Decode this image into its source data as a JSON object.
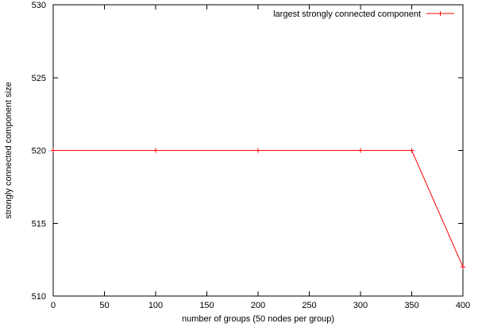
{
  "chart_data": {
    "type": "line",
    "title": "",
    "xlabel": "number of groups (50 nodes per group)",
    "ylabel": "strongly connected component size",
    "xlim": [
      0,
      400
    ],
    "ylim": [
      510,
      530
    ],
    "xticks": [
      0,
      50,
      100,
      150,
      200,
      250,
      300,
      350,
      400
    ],
    "yticks": [
      510,
      515,
      520,
      525,
      530
    ],
    "xtick_labels": [
      "0",
      "50",
      "100",
      "150",
      "200",
      "250",
      "300",
      "350",
      "400"
    ],
    "ytick_labels": [
      "510",
      "515",
      "520",
      "525",
      "530"
    ],
    "grid": false,
    "legend": "top-right",
    "series": [
      {
        "name": "largest strongly connected component",
        "color": "#ff0000",
        "marker": "plus",
        "x": [
          0,
          100,
          200,
          300,
          350,
          400
        ],
        "y": [
          520,
          520,
          520,
          520,
          520,
          512
        ]
      }
    ]
  }
}
